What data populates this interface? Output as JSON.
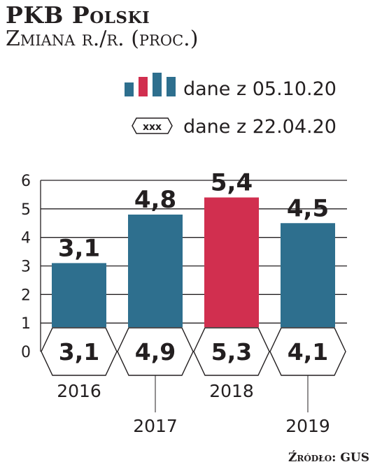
{
  "chart_data": {
    "type": "bar",
    "title": "PKB Polski",
    "subtitle": "Zmiana r./r. (proc.)",
    "categories": [
      "2016",
      "2017",
      "2018",
      "2019"
    ],
    "series": [
      {
        "name": "dane z 05.10.20",
        "values": [
          3.1,
          4.8,
          5.4,
          4.5
        ]
      },
      {
        "name": "dane z 22.04.20",
        "values": [
          3.1,
          4.9,
          5.3,
          4.1
        ]
      }
    ],
    "value_labels": [
      "3,1",
      "4,8",
      "5,4",
      "4,5"
    ],
    "previous_labels": [
      "3,1",
      "4,9",
      "5,3",
      "4,1"
    ],
    "yticks": [
      "0",
      "1",
      "2",
      "3",
      "4",
      "5",
      "6"
    ],
    "ylim": [
      0,
      6
    ],
    "grid": true,
    "legend": {
      "placement": "top-right",
      "items": [
        {
          "label": "dane z 05.10.20",
          "icon": "bar-icon"
        },
        {
          "label": "dane z 22.04.20",
          "icon": "hexagon-icon",
          "icon_text": "xxx"
        }
      ]
    },
    "colors": {
      "bar": "#2e6f8e",
      "highlight": "#d12f4f",
      "grid": "#231f20",
      "hexagon_stroke": "#231f20"
    },
    "highlight_index": 2,
    "source": "Źródło: GUS"
  }
}
